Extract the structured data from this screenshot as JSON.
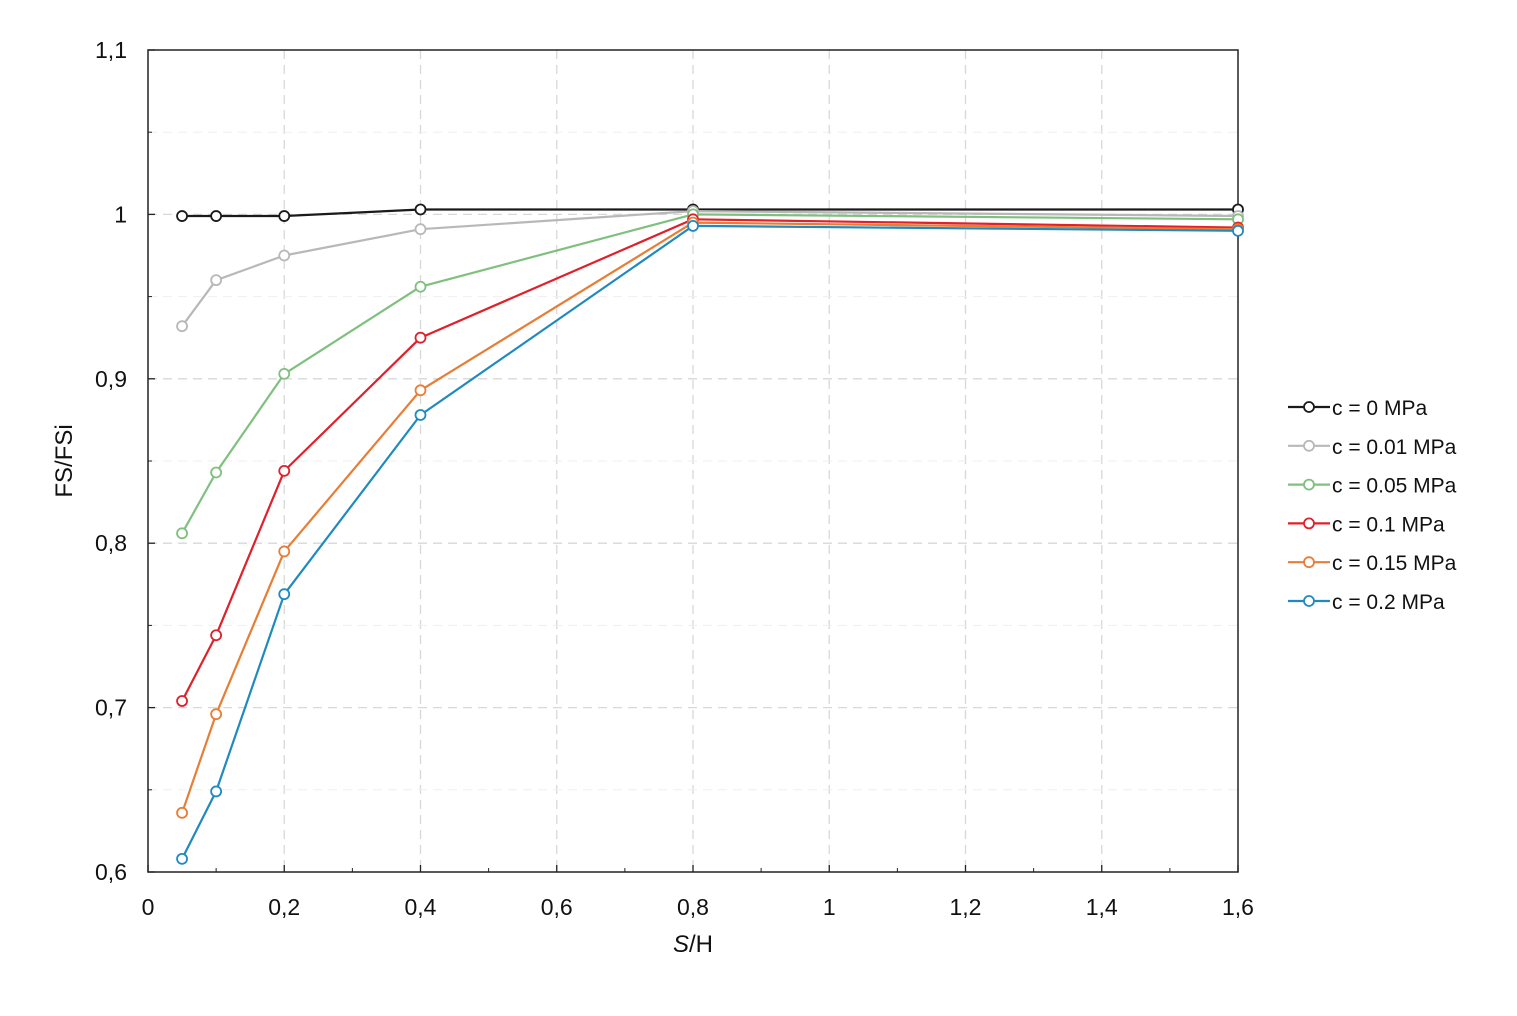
{
  "chart_data": {
    "type": "line",
    "xlabel_italic": "S",
    "xlabel_rest": "/H",
    "ylabel": "FS/FSi",
    "xlim": [
      0,
      1.6
    ],
    "ylim": [
      0.6,
      1.1
    ],
    "x_ticks": [
      "0",
      "0,2",
      "0,4",
      "0,6",
      "0,8",
      "1",
      "1,2",
      "1,4",
      "1,6"
    ],
    "y_ticks": [
      "0,6",
      "0,7",
      "0,8",
      "0,9",
      "1",
      "1,1"
    ],
    "grid": true,
    "legend_position": "right",
    "x": [
      0.05,
      0.1,
      0.2,
      0.4,
      0.8,
      1.6
    ],
    "series": [
      {
        "name": "c = 0 MPa",
        "color": "#1a1a1a",
        "values": [
          0.999,
          0.999,
          0.999,
          1.003,
          1.003,
          1.003
        ]
      },
      {
        "name": "c = 0.01 MPa",
        "color": "#b8b8b8",
        "values": [
          0.932,
          0.96,
          0.975,
          0.991,
          1.002,
          0.999
        ]
      },
      {
        "name": "c = 0.05 MPa",
        "color": "#7fc07f",
        "values": [
          0.806,
          0.843,
          0.903,
          0.956,
          1.0,
          0.997
        ]
      },
      {
        "name": "c = 0.1 MPa",
        "color": "#e0202a",
        "values": [
          0.704,
          0.744,
          0.844,
          0.925,
          0.997,
          0.992
        ]
      },
      {
        "name": "c = 0.15 MPa",
        "color": "#e87d35",
        "values": [
          0.636,
          0.696,
          0.795,
          0.893,
          0.995,
          0.991
        ]
      },
      {
        "name": "c = 0.2 MPa",
        "color": "#1f8ac0",
        "values": [
          0.608,
          0.649,
          0.769,
          0.878,
          0.993,
          0.99
        ]
      }
    ]
  }
}
